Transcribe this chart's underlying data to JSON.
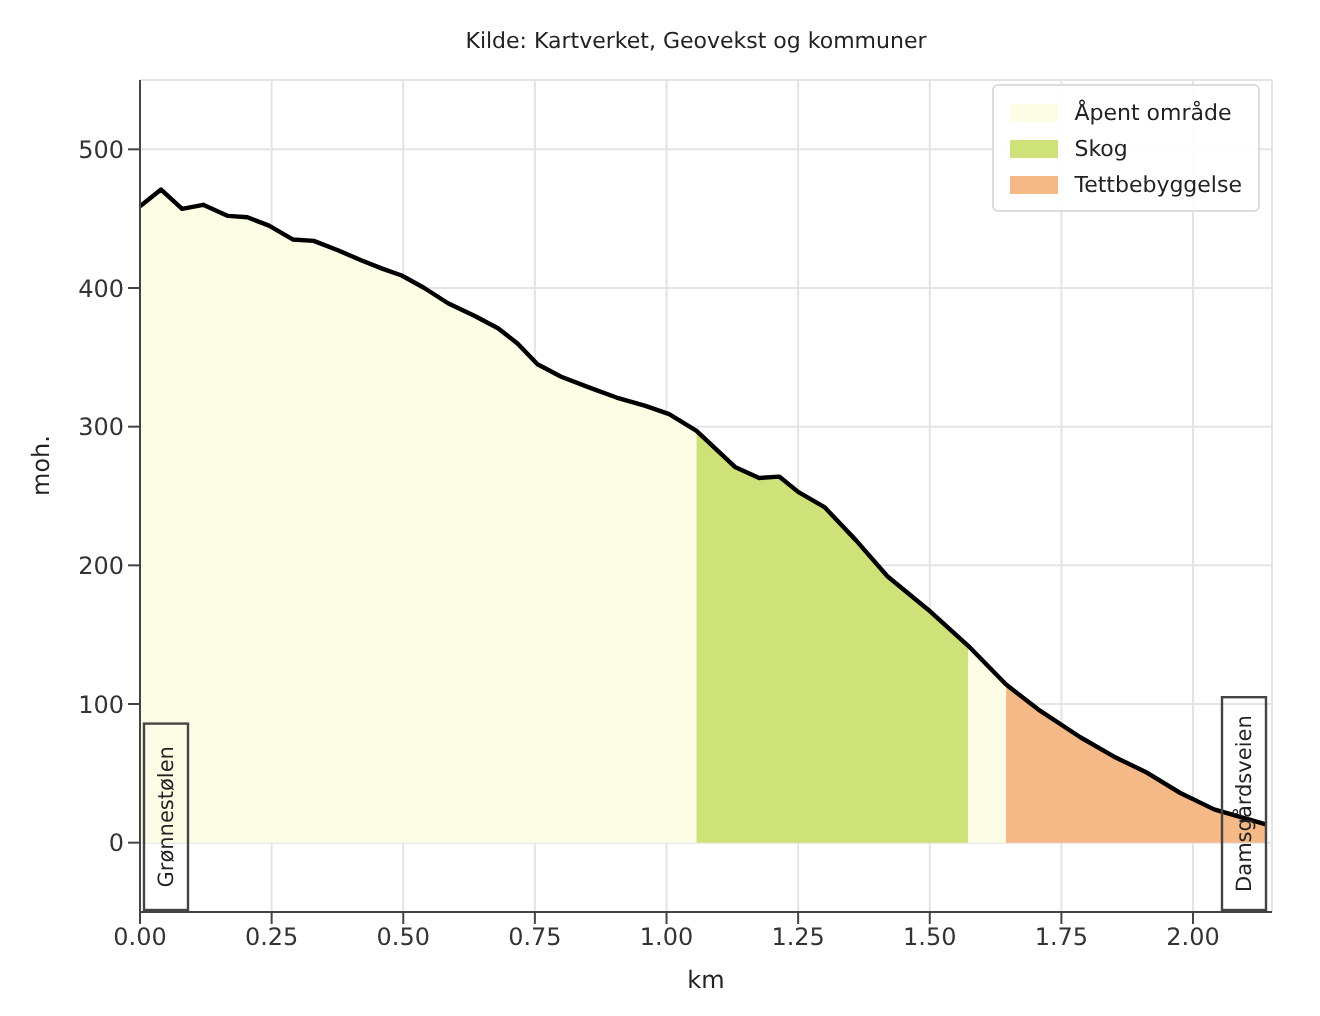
{
  "chart_data": {
    "type": "area",
    "title": "Kilde: Kartverket, Geovekst og kommuner",
    "xlabel": "km",
    "ylabel": "moh.",
    "xlim": [
      0,
      2.15
    ],
    "xticks": [
      {
        "value": 0,
        "label": "0.00"
      },
      {
        "value": 0.25,
        "label": "0.25"
      },
      {
        "value": 0.5,
        "label": "0.50"
      },
      {
        "value": 0.75,
        "label": "0.75"
      },
      {
        "value": 1,
        "label": "1.00"
      },
      {
        "value": 1.25,
        "label": "1.25"
      },
      {
        "value": 1.5,
        "label": "1.50"
      },
      {
        "value": 1.75,
        "label": "1.75"
      },
      {
        "value": 2,
        "label": "2.00"
      }
    ],
    "ylim": [
      -50,
      550
    ],
    "yticks": [
      0,
      100,
      200,
      300,
      400,
      500
    ],
    "grid": true,
    "legend": "top right",
    "series": [
      {
        "name": "Åpent område",
        "color": "#fdfde6",
        "x": [
          0,
          0.04,
          0.08,
          0.12,
          0.167,
          0.204,
          0.245,
          0.29,
          0.33,
          0.377,
          0.42,
          0.46,
          0.497,
          0.54,
          0.585,
          0.635,
          0.68,
          0.717,
          0.755,
          0.8,
          0.855,
          0.905,
          0.96,
          1.005,
          1.057
        ],
        "values": [
          459,
          471,
          457,
          460,
          452,
          451,
          445,
          435,
          434,
          427,
          420,
          414,
          409,
          400,
          389,
          380,
          371,
          360,
          345,
          336,
          328,
          321,
          315,
          309,
          297
        ]
      },
      {
        "name": "Skog",
        "color": "#cfe27a",
        "x": [
          1.057,
          1.13,
          1.176,
          1.214,
          1.25,
          1.3,
          1.36,
          1.42,
          1.497,
          1.573
        ],
        "values": [
          297,
          271,
          263,
          264,
          253,
          242,
          218,
          192,
          168,
          142
        ]
      },
      {
        "color": "#fdfde6",
        "x": [
          1.573,
          1.645
        ],
        "values": [
          142,
          114
        ]
      },
      {
        "name": "Tettbebyggelse",
        "color": "#f5b887",
        "x": [
          1.645,
          1.71,
          1.786,
          1.85,
          1.91,
          1.975,
          2.04,
          2.14
        ],
        "values": [
          114,
          95,
          76,
          62,
          51,
          36,
          24,
          13
        ]
      },
      {
        "type": "line",
        "color": "#000000",
        "x": [
          0,
          0.04,
          0.08,
          0.12,
          0.167,
          0.204,
          0.245,
          0.29,
          0.33,
          0.377,
          0.42,
          0.46,
          0.497,
          0.54,
          0.585,
          0.635,
          0.68,
          0.717,
          0.755,
          0.8,
          0.855,
          0.905,
          0.96,
          1.005,
          1.057,
          1.13,
          1.176,
          1.214,
          1.25,
          1.3,
          1.36,
          1.42,
          1.497,
          1.573,
          1.645,
          1.71,
          1.786,
          1.85,
          1.91,
          1.975,
          2.04,
          2.14
        ],
        "values": [
          459,
          471,
          457,
          460,
          452,
          451,
          445,
          435,
          434,
          427,
          420,
          414,
          409,
          400,
          389,
          380,
          371,
          360,
          345,
          336,
          328,
          321,
          315,
          309,
          297,
          271,
          263,
          264,
          253,
          242,
          218,
          192,
          168,
          142,
          114,
          95,
          76,
          62,
          51,
          36,
          24,
          13
        ]
      }
    ],
    "annotations": [
      "Grønnestølen",
      "Damsgårdsveien"
    ]
  }
}
